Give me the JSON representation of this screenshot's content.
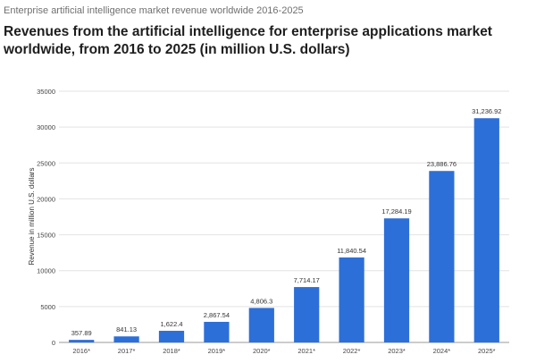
{
  "header": {
    "subtitle": "Enterprise artificial intelligence market revenue worldwide 2016-2025",
    "title": "Revenues from the artificial intelligence for enterprise applications market worldwide, from 2016 to 2025 (in million U.S. dollars)"
  },
  "chart_data": {
    "type": "bar",
    "title": "Revenues from the artificial intelligence for enterprise applications market worldwide, from 2016 to 2025 (in million U.S. dollars)",
    "subtitle": "Enterprise artificial intelligence market revenue worldwide 2016-2025",
    "xlabel": "",
    "ylabel": "Revenue in million U.S. dollars",
    "ylim": [
      0,
      35000
    ],
    "yticks": [
      0,
      5000,
      10000,
      15000,
      20000,
      25000,
      30000,
      35000
    ],
    "ytick_labels": [
      "0",
      "5000",
      "10000",
      "15000",
      "20000",
      "25000",
      "30000",
      "35000"
    ],
    "categories": [
      "2016*",
      "2017*",
      "2018*",
      "2019*",
      "2020*",
      "2021*",
      "2022*",
      "2023*",
      "2024*",
      "2025*"
    ],
    "values": [
      357.89,
      841.13,
      1622.4,
      2867.54,
      4806.3,
      7714.17,
      11840.54,
      17284.19,
      23886.76,
      31236.92
    ],
    "value_labels": [
      "357.89",
      "841.13",
      "1,622.4",
      "2,867.54",
      "4,806.3",
      "7,714.17",
      "11,840.54",
      "17,284.19",
      "23,886.76",
      "31,236.92"
    ],
    "grid": true,
    "legend": "none",
    "bar_color": "#2d6fd8"
  }
}
